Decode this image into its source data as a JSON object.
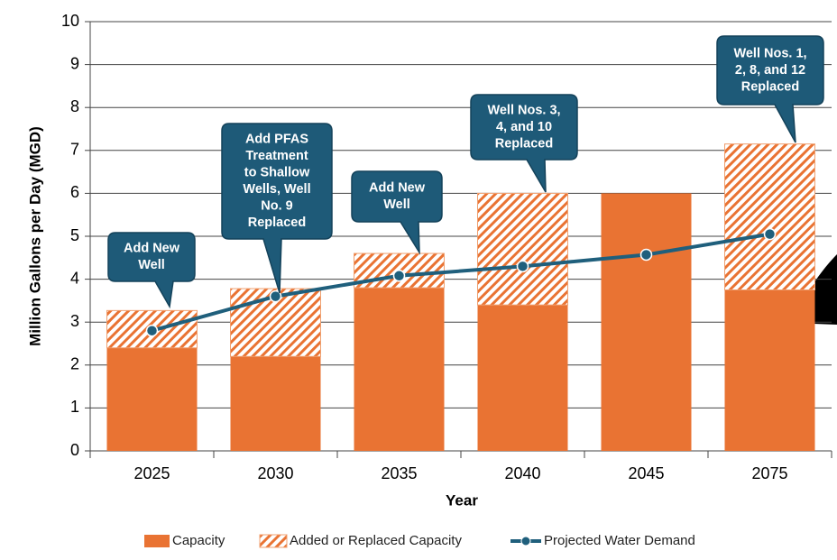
{
  "chart_data": {
    "type": "bar",
    "categories": [
      "2025",
      "2030",
      "2035",
      "2040",
      "2045",
      "2075"
    ],
    "series": [
      {
        "name": "Capacity",
        "color": "#e97333",
        "values": [
          2.4,
          2.2,
          3.8,
          3.4,
          6.0,
          3.75
        ]
      },
      {
        "name": "Added or Replaced Capacity",
        "color": "#e97333",
        "values": [
          0.87,
          1.58,
          0.8,
          2.6,
          0,
          3.4
        ]
      },
      {
        "name": "Projected Water Demand",
        "color": "#1f5f7c",
        "values": [
          2.8,
          3.6,
          4.08,
          4.3,
          4.57,
          5.05
        ]
      }
    ],
    "ylim": [
      0,
      10
    ],
    "yticks": [
      0,
      1,
      2,
      3,
      4,
      5,
      6,
      7,
      8,
      9,
      10
    ],
    "grid": true,
    "xlabel": "Year",
    "ylabel": "Million Gallons per Day (MGD)",
    "annotations": [
      {
        "lines": [
          "Add New",
          "Well"
        ]
      },
      {
        "lines": [
          "Add PFAS",
          "Treatment",
          "to Shallow",
          "Wells, Well",
          "No. 9",
          "Replaced"
        ]
      },
      {
        "lines": [
          "Add New",
          "Well"
        ]
      },
      {
        "lines": [
          "Well Nos. 3,",
          "4, and 10",
          "Replaced"
        ]
      },
      {
        "lines": [
          "Well Nos. 1,",
          "2, 8, and 12",
          "Replaced"
        ]
      }
    ],
    "legend": "bottom"
  }
}
